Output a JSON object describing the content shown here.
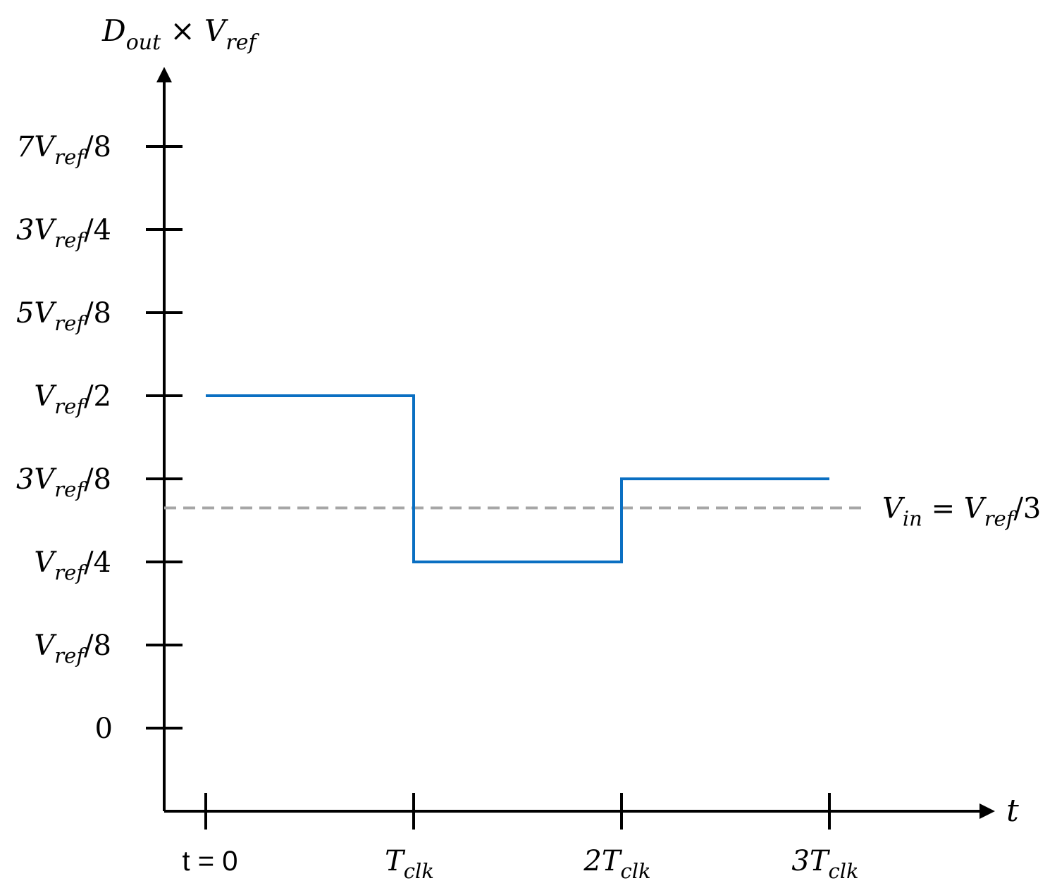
{
  "colors": {
    "axis": "#000000",
    "step_line": "#0a6fc2",
    "reference_line": "#a6a6a6",
    "background": "#ffffff"
  },
  "chart_data": {
    "type": "line",
    "line_style": "step",
    "title": "",
    "ylabel": "D_out × V_ref",
    "xlabel": "t",
    "x_ticks": [
      "t = 0",
      "T_clk",
      "2T_clk",
      "3T_clk"
    ],
    "y_ticks": [
      {
        "value": 0,
        "label": "0"
      },
      {
        "value": 0.125,
        "label": "V_ref/8"
      },
      {
        "value": 0.25,
        "label": "V_ref/4"
      },
      {
        "value": 0.375,
        "label": "3V_ref/8"
      },
      {
        "value": 0.5,
        "label": "V_ref/2"
      },
      {
        "value": 0.625,
        "label": "5V_ref/8"
      },
      {
        "value": 0.75,
        "label": "3V_ref/4"
      },
      {
        "value": 0.875,
        "label": "7V_ref/8"
      }
    ],
    "y_unit": "V_ref",
    "ylim": [
      -0.25,
      1.0
    ],
    "xlim": [
      -0.2,
      3.8
    ],
    "series": [
      {
        "points": [
          {
            "x": 0,
            "y": 0.5
          },
          {
            "x": 1,
            "y": 0.5
          },
          {
            "x": 1,
            "y": 0.25
          },
          {
            "x": 2,
            "y": 0.25
          },
          {
            "x": 2,
            "y": 0.375
          },
          {
            "x": 3,
            "y": 0.375
          }
        ]
      }
    ],
    "reference_lines": [
      {
        "y": 0.3333,
        "label": "V_in = V_ref/3",
        "style": "dashed"
      }
    ],
    "grid": false,
    "legend": "none"
  }
}
